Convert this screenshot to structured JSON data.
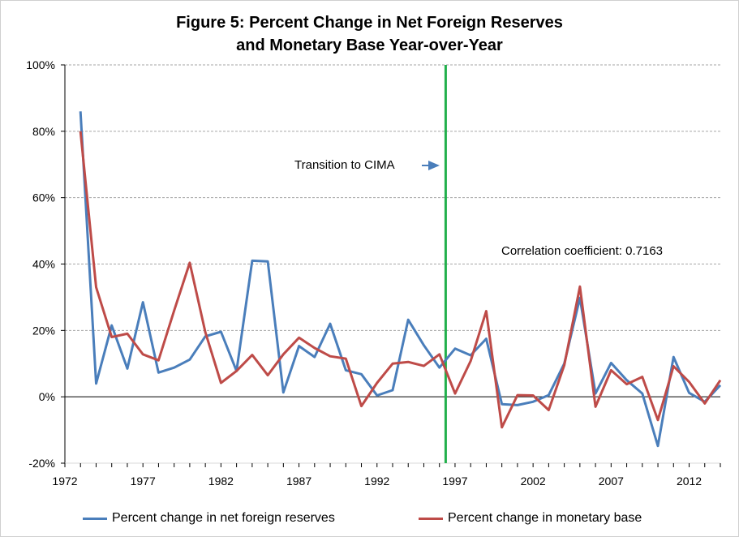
{
  "chart_data": {
    "type": "line",
    "title_line1": "Figure 5: Percent Change in Net Foreign Reserves",
    "title_line2": "and Monetary Base Year-over-Year",
    "xlabel": "",
    "ylabel": "",
    "x": [
      1973,
      1974,
      1975,
      1976,
      1977,
      1978,
      1979,
      1980,
      1981,
      1982,
      1983,
      1984,
      1985,
      1986,
      1987,
      1988,
      1989,
      1990,
      1991,
      1992,
      1993,
      1994,
      1995,
      1996,
      1997,
      1998,
      1999,
      2000,
      2001,
      2002,
      2003,
      2004,
      2005,
      2006,
      2007,
      2008,
      2009,
      2010,
      2011,
      2012,
      2013,
      2014
    ],
    "xlim": [
      1972,
      2014
    ],
    "ylim": [
      -20,
      100
    ],
    "x_ticks": [
      1972,
      1977,
      1982,
      1987,
      1992,
      1997,
      2002,
      2007,
      2012
    ],
    "x_tick_labels": [
      "1972",
      "1977",
      "1982",
      "1987",
      "1992",
      "1997",
      "2002",
      "2007",
      "2012"
    ],
    "y_ticks": [
      -20,
      0,
      20,
      40,
      60,
      80,
      100
    ],
    "y_tick_labels": [
      "-20%",
      "0%",
      "20%",
      "40%",
      "60%",
      "80%",
      "100%"
    ],
    "grid": "horizontal dashed",
    "legend_position": "bottom",
    "series": [
      {
        "name": "Percent change in net foreign reserves",
        "color": "#4a7ebb",
        "values": [
          86,
          4,
          21.5,
          8.5,
          28.5,
          7.3,
          8.8,
          11.2,
          18.2,
          19.6,
          7.8,
          41,
          40.8,
          1.3,
          15.3,
          12,
          22,
          8,
          6.8,
          0.4,
          2,
          23.2,
          15.5,
          8.8,
          14.5,
          12.5,
          17.5,
          -2.2,
          -2.5,
          -1.5,
          0.5,
          10,
          29.8,
          1,
          10.2,
          5,
          1,
          -14.8,
          12,
          1.2,
          -1.5,
          3.5
        ]
      },
      {
        "name": "Percent change in monetary base",
        "color": "#be4b48",
        "values": [
          80,
          33,
          18,
          19,
          12.8,
          11,
          26,
          40.4,
          19.5,
          4.2,
          7.8,
          12.6,
          6.5,
          12.8,
          17.8,
          14.7,
          12.2,
          11.5,
          -2.8,
          4.2,
          10,
          10.5,
          9.3,
          12.8,
          1,
          10.8,
          25.8,
          -9.2,
          0.5,
          0.4,
          -4,
          9.5,
          33.2,
          -3,
          8,
          3.8,
          6,
          -7,
          9.2,
          4.5,
          -2,
          5
        ]
      }
    ],
    "annotations": {
      "vline_year": 1996.4,
      "vline_color": "#22b04c",
      "transition_label": "Transition to CIMA",
      "correlation_label": "Correlation coefficient: 0.7163"
    }
  }
}
